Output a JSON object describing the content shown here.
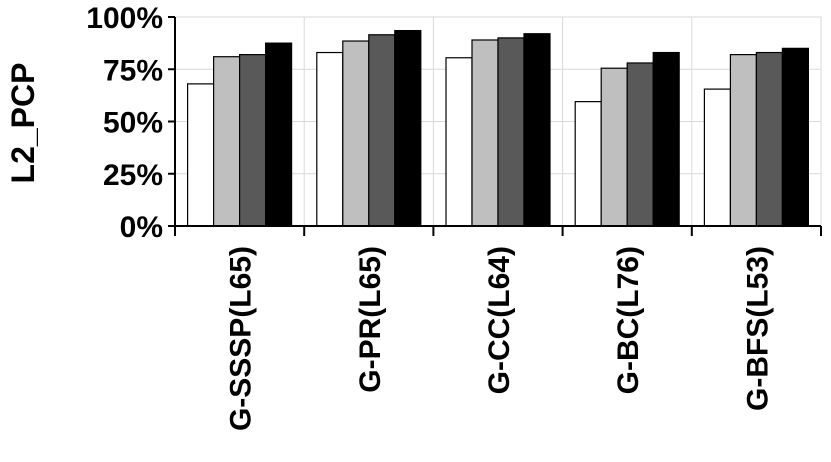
{
  "chart_data": {
    "type": "bar",
    "title": "",
    "xlabel": "",
    "ylabel": "L2_PCP",
    "categories": [
      "G-SSSP(L65)",
      "G-PR(L65)",
      "G-CC(L64)",
      "G-BC(L76)",
      "G-BFS(L53)"
    ],
    "series": [
      {
        "values": [
          68,
          83,
          80.5,
          59.5,
          65.5
        ],
        "color": "#ffffff"
      },
      {
        "values": [
          81,
          88.5,
          89,
          75.5,
          82
        ],
        "color": "#bfbfbf"
      },
      {
        "values": [
          82,
          91.5,
          90,
          78,
          83
        ],
        "color": "#595959"
      },
      {
        "values": [
          87.5,
          93.5,
          92,
          83,
          85
        ],
        "color": "#000000"
      }
    ],
    "yticks": [
      "0%",
      "25%",
      "50%",
      "75%",
      "100%"
    ],
    "ylim": [
      0,
      100
    ],
    "grid": "horizontal and vertical",
    "legend": "none"
  }
}
